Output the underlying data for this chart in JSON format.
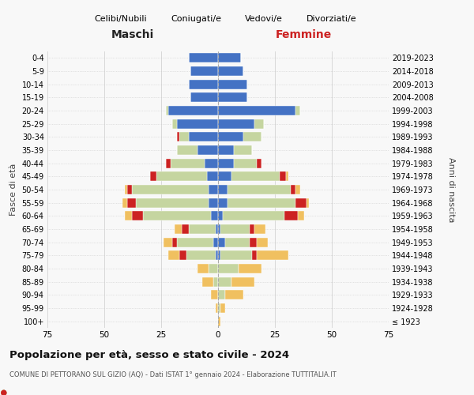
{
  "age_groups": [
    "100+",
    "95-99",
    "90-94",
    "85-89",
    "80-84",
    "75-79",
    "70-74",
    "65-69",
    "60-64",
    "55-59",
    "50-54",
    "45-49",
    "40-44",
    "35-39",
    "30-34",
    "25-29",
    "20-24",
    "15-19",
    "10-14",
    "5-9",
    "0-4"
  ],
  "birth_years": [
    "≤ 1923",
    "1924-1928",
    "1929-1933",
    "1934-1938",
    "1939-1943",
    "1944-1948",
    "1949-1953",
    "1954-1958",
    "1959-1963",
    "1964-1968",
    "1969-1973",
    "1974-1978",
    "1979-1983",
    "1984-1988",
    "1989-1993",
    "1994-1998",
    "1999-2003",
    "2004-2008",
    "2009-2013",
    "2014-2018",
    "2019-2023"
  ],
  "colors": {
    "celibi": "#4472C4",
    "coniugati": "#c5d5a0",
    "vedovi": "#f0c060",
    "divorziati": "#cc2222"
  },
  "male": {
    "celibi": [
      0,
      0,
      0,
      0,
      0,
      1,
      2,
      1,
      3,
      4,
      4,
      5,
      6,
      9,
      13,
      18,
      22,
      12,
      13,
      12,
      13
    ],
    "coniugati": [
      0,
      0,
      0,
      2,
      4,
      13,
      16,
      12,
      30,
      32,
      34,
      22,
      15,
      9,
      4,
      2,
      1,
      0,
      0,
      0,
      0
    ],
    "vedovi": [
      0,
      1,
      3,
      5,
      5,
      5,
      4,
      3,
      3,
      2,
      1,
      0,
      0,
      0,
      0,
      0,
      0,
      0,
      0,
      0,
      0
    ],
    "divorziati": [
      0,
      0,
      0,
      0,
      0,
      3,
      2,
      3,
      5,
      4,
      2,
      3,
      2,
      0,
      1,
      0,
      0,
      0,
      0,
      0,
      0
    ]
  },
  "female": {
    "celibi": [
      0,
      0,
      0,
      0,
      0,
      1,
      3,
      1,
      2,
      4,
      4,
      6,
      7,
      7,
      11,
      16,
      34,
      13,
      13,
      11,
      10
    ],
    "coniugati": [
      0,
      1,
      3,
      6,
      9,
      14,
      11,
      13,
      27,
      30,
      28,
      21,
      10,
      8,
      8,
      4,
      2,
      0,
      0,
      0,
      0
    ],
    "vedovi": [
      1,
      2,
      8,
      10,
      10,
      14,
      5,
      5,
      3,
      1,
      2,
      1,
      0,
      0,
      0,
      0,
      0,
      0,
      0,
      0,
      0
    ],
    "divorziati": [
      0,
      0,
      0,
      0,
      0,
      2,
      3,
      2,
      6,
      5,
      2,
      3,
      2,
      0,
      0,
      0,
      0,
      0,
      0,
      0,
      0
    ]
  },
  "xlim": 75,
  "title1": "Popolazione per età, sesso e stato civile - 2024",
  "title2": "COMUNE DI PETTORANO SUL GIZIO (AQ) - Dati ISTAT 1° gennaio 2024 - Elaborazione TUTTITALIA.IT",
  "ylabel_left": "Fasce di età",
  "ylabel_right": "Anni di nascita",
  "xlabel_left": "Maschi",
  "xlabel_right": "Femmine",
  "legend_labels": [
    "Celibi/Nubili",
    "Coniugati/e",
    "Vedovi/e",
    "Divorziati/e"
  ],
  "bg_color": "#f8f8f8",
  "bar_height": 0.72
}
